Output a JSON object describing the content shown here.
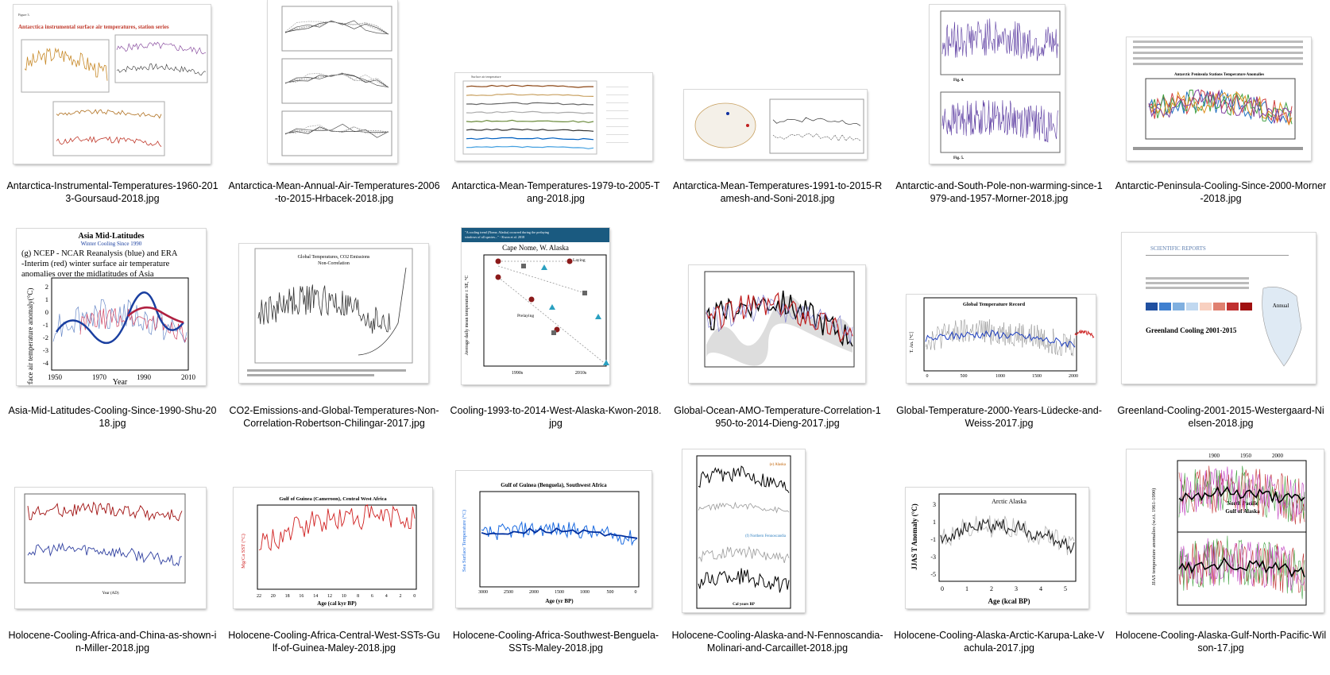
{
  "files": [
    {
      "name": "Antarctica-Instrumental-Temperatures-1960-2013-Goursaud-2018.jpg",
      "title": "Antarctica instrumental surface air temperatures, station series"
    },
    {
      "name": "Antarctica-Mean-Annual-Air-Temperatures-2006-to-2015-Hrbacek-2018.jpg"
    },
    {
      "name": "Antarctica-Mean-Temperatures-1979-to-2005-Tang-2018.jpg"
    },
    {
      "name": "Antarctica-Mean-Temperatures-1991-to-2015-Ramesh-and-Soni-2018.jpg"
    },
    {
      "name": "Antarctic-and-South-Pole-non-warming-since-1979-and-1957-Morner-2018.jpg"
    },
    {
      "name": "Antarctic-Peninsula-Cooling-Since-2000-Morner-2018.jpg",
      "title": "Antarctic Peninsula Stations Temperature Anomalies"
    },
    {
      "name": "Asia-Mid-Latitudes-Cooling-Since-1990-Shu-2018.jpg",
      "title": "Asia Mid-Latitudes",
      "subtitle": "Winter Cooling Since 1990",
      "text": "(g) NCEP - NCAR Reanalysis (blue) and ERA-Interim (red) winter surface air temperature anomalies over the midlatitudes of Asia",
      "ylabel": "Winter surface air temperature anomaly(°C)",
      "xlabel": "Year",
      "ticks_x": [
        "1950",
        "1970",
        "1990",
        "2010"
      ],
      "ticks_y": [
        "2",
        "1",
        "0",
        "-1",
        "-2",
        "-3",
        "-4"
      ]
    },
    {
      "name": "CO2-Emissions-and-Global-Temperatures-Non-Correlation-Robertson-Chilingar-2017.jpg",
      "title": "Global Temperatures, CO2 Emissions Non-Correlation"
    },
    {
      "name": "Cooling-1993-to-2014-West-Alaska-Kwon-2018.jpg",
      "title": "Cape Nome, W. Alaska",
      "ylabel": "Average daily mean temperature ± SE, °C",
      "label_laying": "Laying",
      "label_prelaying": "Prelaying",
      "ticks_x": [
        "1990s",
        "2010s"
      ]
    },
    {
      "name": "Global-Ocean-AMO-Temperature-Correlation-1950-to-2014-Dieng-2017.jpg"
    },
    {
      "name": "Global-Temperature-2000-Years-Lüdecke-and-Weiss-2017.jpg",
      "title": "Global Temperature Record",
      "ylabel": "T. An. [°C]",
      "ticks_x": [
        "0",
        "500",
        "1000",
        "1500",
        "2000"
      ]
    },
    {
      "name": "Greenland-Cooling-2001-2015-Westergaard-Nielsen-2018.jpg",
      "title": "Greenland Cooling 2001-2015",
      "header": "SCIENTIFIC REPORTS",
      "map_label": "Annual"
    },
    {
      "name": "Holocene-Cooling-Africa-and-China-as-shown-in-Miller-2018.jpg"
    },
    {
      "name": "Holocene-Cooling-Africa-Central-West-SSTs-Gulf-of-Guinea-Maley-2018.jpg",
      "title": "Gulf of Guinea (Cameroon), Central West Africa",
      "ylabel": "Mg/Ca SST (°C)",
      "xlabel": "Age (cal kyr BP)",
      "ticks_x": [
        "22",
        "20",
        "18",
        "16",
        "14",
        "12",
        "10",
        "8",
        "6",
        "4",
        "2",
        "0"
      ]
    },
    {
      "name": "Holocene-Cooling-Africa-Southwest-Benguela-SSTs-Maley-2018.jpg",
      "title": "Gulf of Guinea (Benguela), Southwest Africa",
      "ylabel": "Sea Surface Temperature (°C)",
      "xlabel": "Age (yr BP)",
      "ticks_x": [
        "3000",
        "2500",
        "2000",
        "1500",
        "1000",
        "500",
        "0"
      ]
    },
    {
      "name": "Holocene-Cooling-Alaska-and-N-Fennoscandia-Molinari-and-Carcaillet-2018.jpg",
      "label_a": "(e) Alaska",
      "label_b": "(f) Northern Fennoscandia",
      "xlabel": "Cal years BP"
    },
    {
      "name": "Holocene-Cooling-Alaska-Arctic-Karupa-Lake-Vachula-2017.jpg",
      "title": "Arctic Alaska",
      "ylabel": "JJAS T Anomaly (°C)",
      "xlabel": "Age (kcal BP)",
      "ticks_x": [
        "0",
        "1",
        "2",
        "3",
        "4",
        "5"
      ],
      "ticks_y": [
        "3",
        "1",
        "-1",
        "-3",
        "-5"
      ]
    },
    {
      "name": "Holocene-Cooling-Alaska-Gulf-North-Pacific-Wilson-17.jpg",
      "title": "North Pacific Gulf of Alaska",
      "ylabel": "JJAS temperature anomalies (w.r.t. 1961-1990)",
      "ticks_x": [
        "1900",
        "1950",
        "2000"
      ]
    }
  ]
}
